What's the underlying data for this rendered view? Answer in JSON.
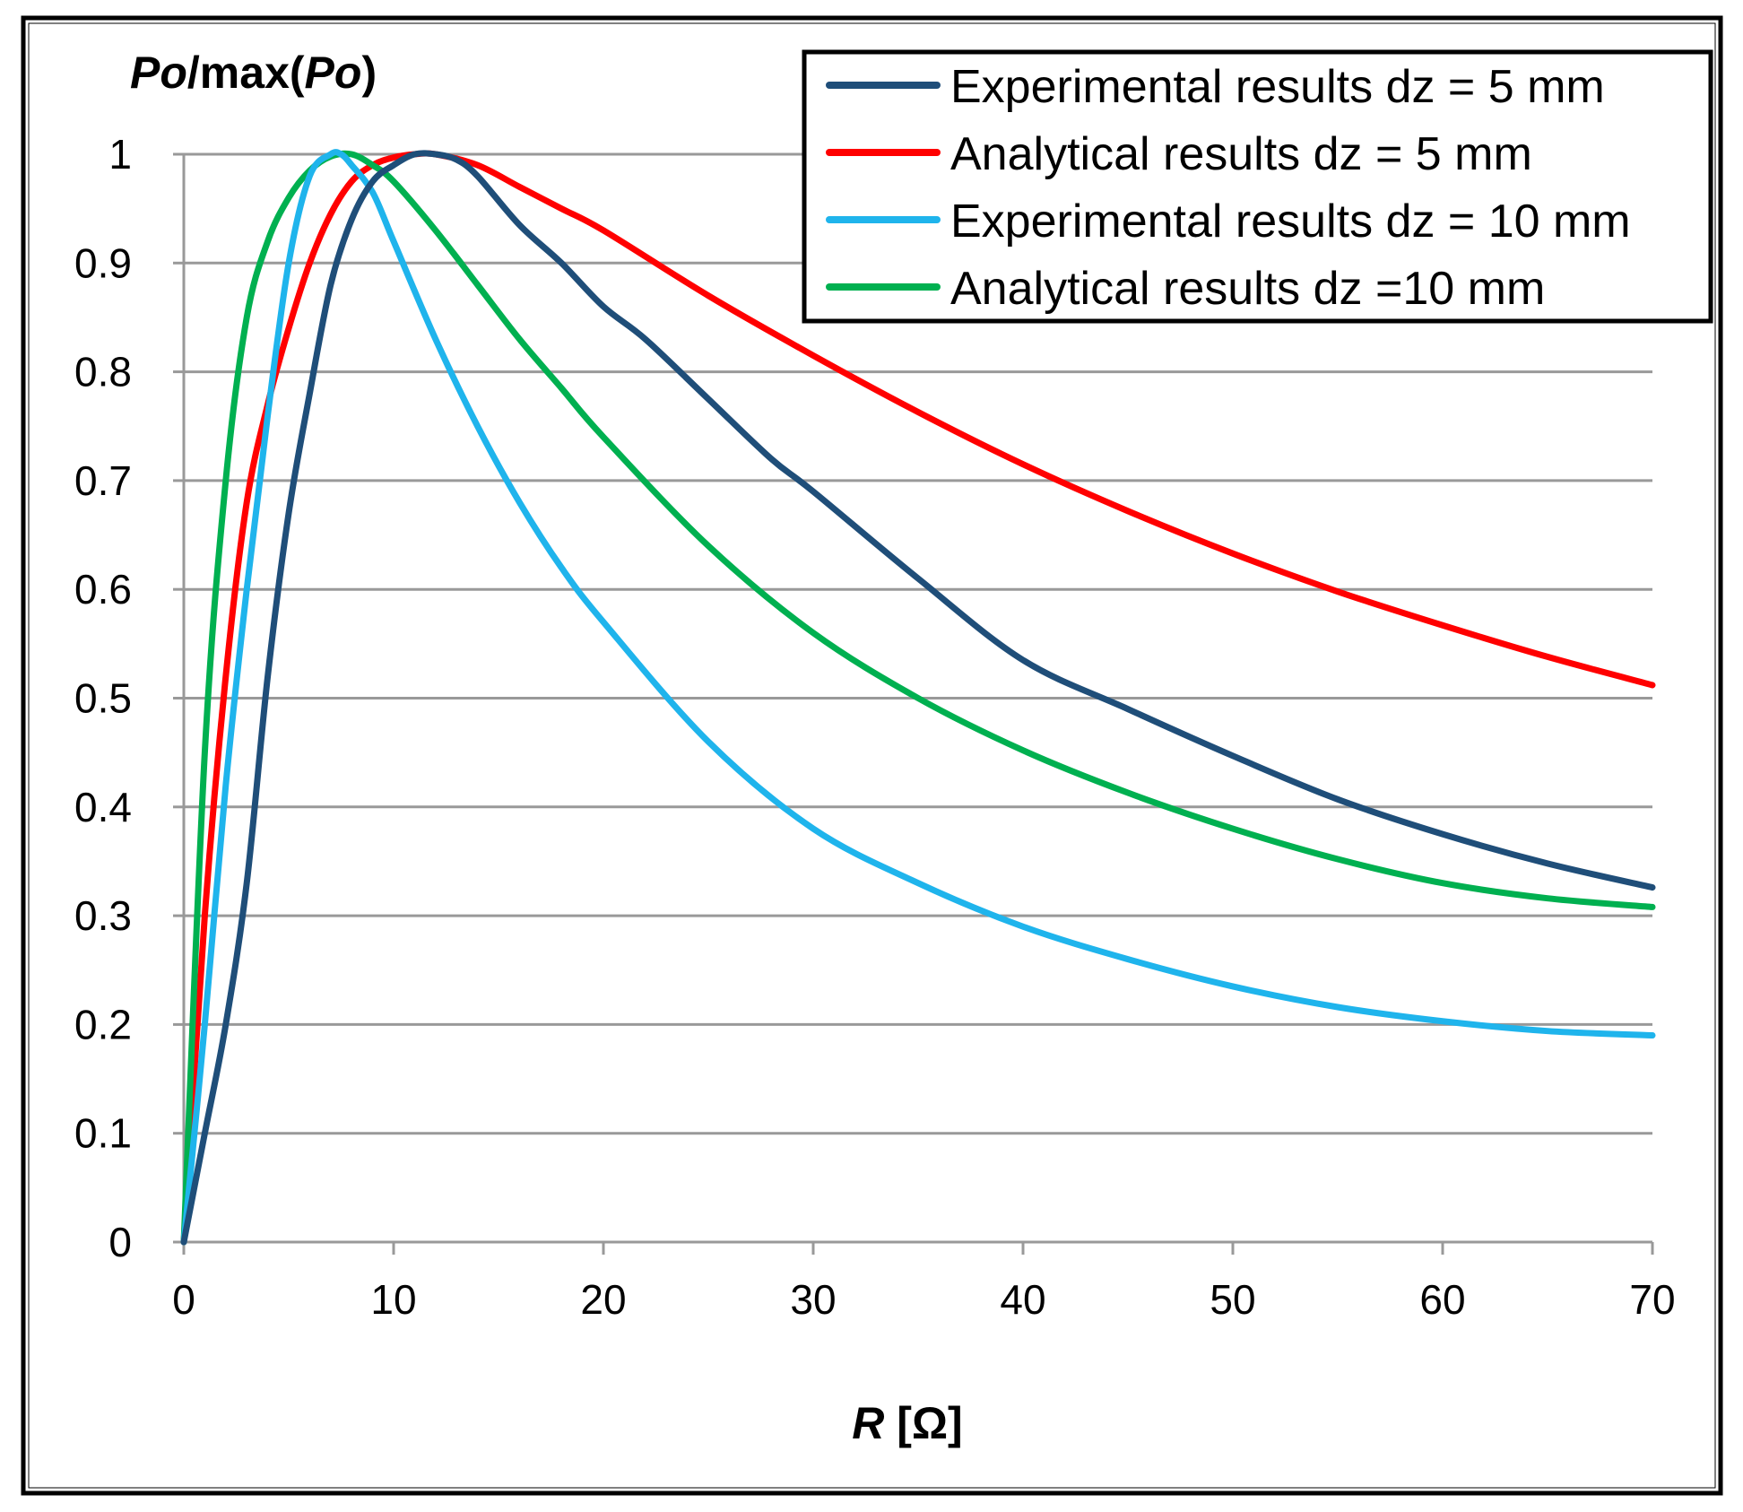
{
  "chart_data": {
    "type": "line",
    "ylabel_parts": {
      "p1": "Po",
      "p2": "/max(",
      "p3": "Po",
      "p4": ")"
    },
    "xlabel_parts": {
      "p1": "R",
      "p2": " [Ω]"
    },
    "xlim": [
      0,
      70
    ],
    "ylim": [
      0,
      1
    ],
    "xticks": [
      0,
      10,
      20,
      30,
      40,
      50,
      60,
      70
    ],
    "yticks": [
      0,
      0.1,
      0.2,
      0.3,
      0.4,
      0.5,
      0.6,
      0.7,
      0.8,
      0.9,
      1
    ],
    "xtick_labels": [
      "0",
      "10",
      "20",
      "30",
      "40",
      "50",
      "60",
      "70"
    ],
    "ytick_labels": [
      "0",
      "0.1",
      "0.2",
      "0.3",
      "0.4",
      "0.5",
      "0.6",
      "0.7",
      "0.8",
      "0.9",
      "1"
    ],
    "grid": true,
    "legend_position": "top-right",
    "series": [
      {
        "name": "Experimental results dz = 5 mm",
        "color": "#1f4e79",
        "x": [
          0,
          1,
          2,
          3,
          4,
          5,
          6,
          7,
          8,
          9,
          10,
          11,
          12,
          13,
          14,
          16,
          18,
          20,
          22,
          25,
          28,
          30,
          35,
          40,
          45,
          50,
          55,
          60,
          65,
          70
        ],
        "y": [
          0,
          0.1,
          0.2,
          0.33,
          0.52,
          0.67,
          0.78,
          0.88,
          0.94,
          0.975,
          0.99,
          1.0,
          1.0,
          0.995,
          0.98,
          0.935,
          0.9,
          0.86,
          0.83,
          0.775,
          0.72,
          0.69,
          0.61,
          0.535,
          0.49,
          0.447,
          0.407,
          0.375,
          0.348,
          0.326
        ]
      },
      {
        "name": "Analytical results dz = 5 mm",
        "color": "#ff0000",
        "x": [
          0,
          1,
          2,
          3,
          4,
          5,
          6,
          7,
          8,
          9,
          10,
          11,
          12,
          14,
          16,
          18,
          20,
          25,
          30,
          35,
          40,
          45,
          50,
          55,
          60,
          65,
          70
        ],
        "y": [
          0,
          0.3,
          0.52,
          0.68,
          0.77,
          0.84,
          0.9,
          0.945,
          0.975,
          0.99,
          0.997,
          1.0,
          1.0,
          0.99,
          0.97,
          0.95,
          0.93,
          0.87,
          0.815,
          0.763,
          0.715,
          0.672,
          0.633,
          0.598,
          0.567,
          0.538,
          0.512
        ]
      },
      {
        "name": "Experimental results dz = 10 mm",
        "color": "#1fb4ec",
        "x": [
          0,
          1,
          2,
          3,
          4,
          5,
          6,
          7,
          7.5,
          8,
          9,
          10,
          12,
          14,
          16,
          18,
          20,
          25,
          30,
          35,
          40,
          45,
          50,
          55,
          60,
          65,
          70
        ],
        "y": [
          0,
          0.2,
          0.42,
          0.6,
          0.76,
          0.9,
          0.98,
          1.0,
          1.0,
          0.99,
          0.965,
          0.92,
          0.83,
          0.75,
          0.68,
          0.62,
          0.57,
          0.46,
          0.38,
          0.33,
          0.29,
          0.26,
          0.235,
          0.216,
          0.203,
          0.194,
          0.19
        ]
      },
      {
        "name": "Analytical results dz =10 mm",
        "color": "#00b050",
        "x": [
          0,
          1,
          2,
          3,
          4,
          5,
          6,
          7,
          8,
          9,
          10,
          12,
          14,
          16,
          18,
          20,
          25,
          30,
          35,
          40,
          45,
          50,
          55,
          60,
          65,
          70
        ],
        "y": [
          0,
          0.45,
          0.7,
          0.85,
          0.92,
          0.96,
          0.985,
          0.998,
          1.0,
          0.99,
          0.975,
          0.93,
          0.88,
          0.83,
          0.785,
          0.74,
          0.64,
          0.56,
          0.5,
          0.452,
          0.413,
          0.38,
          0.352,
          0.33,
          0.316,
          0.308
        ]
      }
    ]
  }
}
